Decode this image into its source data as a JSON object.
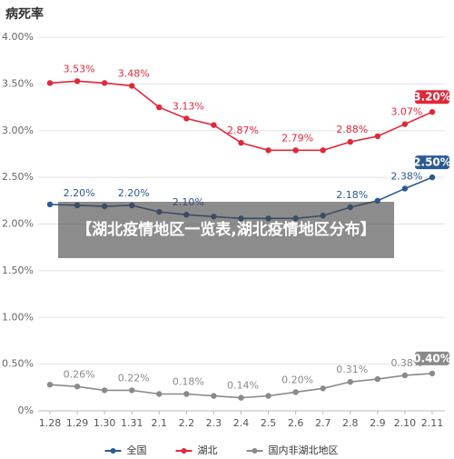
{
  "chart_data": {
    "type": "line",
    "title": "病死率",
    "categories": [
      "1.28",
      "1.29",
      "1.30",
      "1.31",
      "2.1",
      "2.2",
      "2.3",
      "2.4",
      "2.5",
      "2.6",
      "2.7",
      "2.8",
      "2.9",
      "2.10",
      "2.11"
    ],
    "ylim": [
      0,
      4
    ],
    "yticks": [
      {
        "value": 0,
        "label": "0%"
      },
      {
        "value": 0.5,
        "label": "0.50%"
      },
      {
        "value": 1,
        "label": "1.00%"
      },
      {
        "value": 1.5,
        "label": "1.50%"
      },
      {
        "value": 2,
        "label": "2.00%"
      },
      {
        "value": 2.5,
        "label": "2.50%"
      },
      {
        "value": 3,
        "label": "3.00%"
      },
      {
        "value": 3.5,
        "label": "3.50%"
      },
      {
        "value": 4,
        "label": "4.00%"
      }
    ],
    "grid": true,
    "series": [
      {
        "name": "全国",
        "color": "#2b5a93",
        "values": [
          2.21,
          2.2,
          2.19,
          2.2,
          2.13,
          2.1,
          2.08,
          2.06,
          2.06,
          2.06,
          2.09,
          2.18,
          2.25,
          2.38,
          2.5
        ],
        "value_labels": [
          null,
          "2.20%",
          null,
          "2.20%",
          null,
          "2.10%",
          null,
          null,
          null,
          null,
          null,
          "2.18%",
          null,
          "2.38%",
          "2.50%"
        ]
      },
      {
        "name": "湖北",
        "color": "#e0283a",
        "values": [
          3.51,
          3.53,
          3.51,
          3.48,
          3.25,
          3.13,
          3.06,
          2.87,
          2.79,
          2.79,
          2.79,
          2.88,
          2.94,
          3.07,
          3.2
        ],
        "value_labels": [
          null,
          "3.53%",
          null,
          "3.48%",
          null,
          "3.13%",
          null,
          "2.87%",
          null,
          "2.79%",
          null,
          "2.88%",
          null,
          "3.07%",
          "3.20%"
        ]
      },
      {
        "name": "国内非湖北地区",
        "color": "#8a8a8a",
        "values": [
          0.28,
          0.26,
          0.22,
          0.22,
          0.18,
          0.18,
          0.16,
          0.14,
          0.16,
          0.2,
          0.24,
          0.31,
          0.34,
          0.38,
          0.4
        ],
        "value_labels": [
          null,
          "0.26%",
          null,
          "0.22%",
          null,
          "0.18%",
          null,
          "0.14%",
          null,
          "0.20%",
          null,
          "0.31%",
          null,
          "0.38%",
          "0.40%"
        ]
      }
    ]
  },
  "overlay": {
    "banner": "【湖北疫情地区一览表,湖北疫情地区分布】"
  }
}
